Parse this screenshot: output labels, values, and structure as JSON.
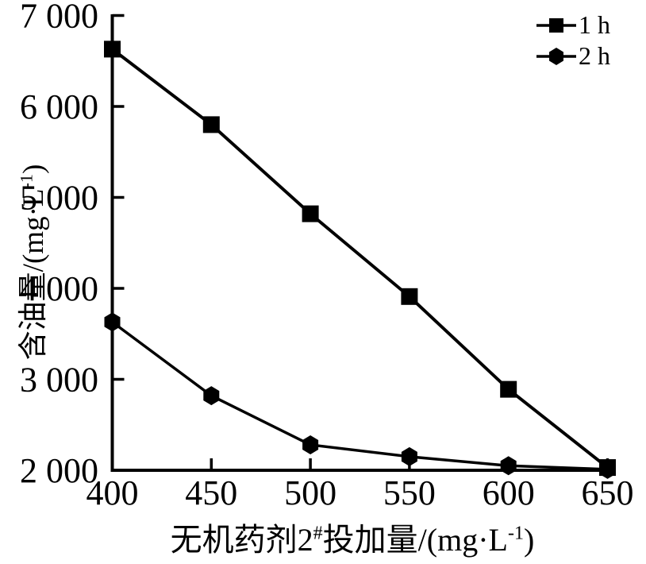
{
  "chart_data": {
    "type": "line",
    "title": "",
    "xlabel_parts": {
      "prefix": "无机药剂2",
      "sup1": "#",
      "mid": "投加量/(mg·L",
      "sup2": "-1",
      "suffix": ")"
    },
    "ylabel_parts": {
      "prefix": "含油量/(mg·L",
      "sup": "-1",
      "suffix": ")"
    },
    "x": [
      400,
      450,
      500,
      550,
      600,
      650
    ],
    "x_tick_labels": [
      "400",
      "450",
      "500",
      "550",
      "600",
      "650"
    ],
    "y_ticks": [
      2000,
      3000,
      4000,
      5000,
      6000,
      7000
    ],
    "y_tick_labels": [
      "2 000",
      "3 000",
      "4 000",
      "5 000",
      "6 000",
      "7 000"
    ],
    "xlim": [
      400,
      650
    ],
    "ylim": [
      2000,
      7000
    ],
    "grid": false,
    "legend_position": "top-right",
    "series": [
      {
        "name": "1 h",
        "marker": "square",
        "values": [
          6630,
          5800,
          4820,
          3910,
          2890,
          2030
        ]
      },
      {
        "name": "2 h",
        "marker": "hexagon",
        "values": [
          3630,
          2820,
          2280,
          2150,
          2050,
          2010
        ]
      }
    ],
    "colors": {
      "line": "#000000",
      "background": "#ffffff"
    }
  }
}
